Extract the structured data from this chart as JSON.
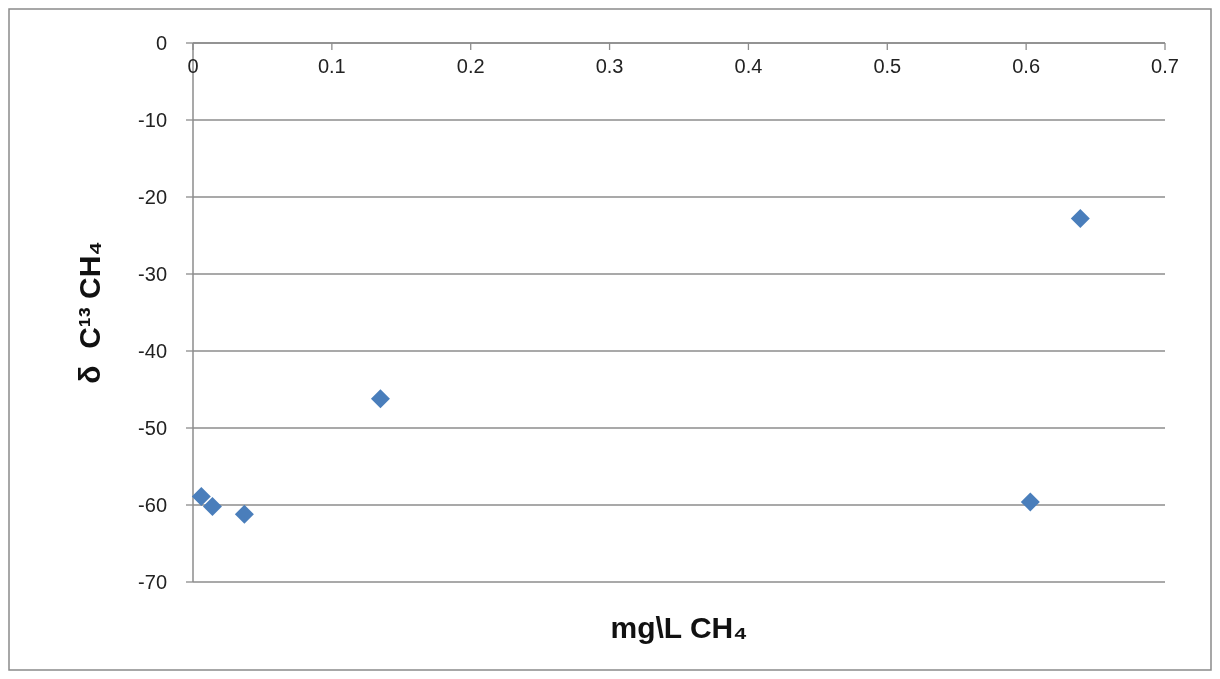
{
  "chart_data": {
    "type": "scatter",
    "xlabel": "mg\\L CH₄",
    "ylabel": "δ  C¹³ CH₄",
    "x": [
      0.006,
      0.014,
      0.037,
      0.135,
      0.603,
      0.639
    ],
    "series": [
      {
        "color": "#4a7ebb",
        "values": [
          -58.9,
          -60.2,
          -61.2,
          -46.2,
          -59.6,
          -22.8
        ]
      }
    ],
    "xlim": [
      0,
      0.7
    ],
    "xticks": [
      0,
      0.1,
      0.2,
      0.3,
      0.4,
      0.5,
      0.6,
      0.7
    ],
    "ylim": [
      -70,
      0
    ],
    "yticks": [
      -70,
      -60,
      -50,
      -40,
      -30,
      -20,
      -10,
      0
    ],
    "grid": "y",
    "marker": "diamond"
  }
}
